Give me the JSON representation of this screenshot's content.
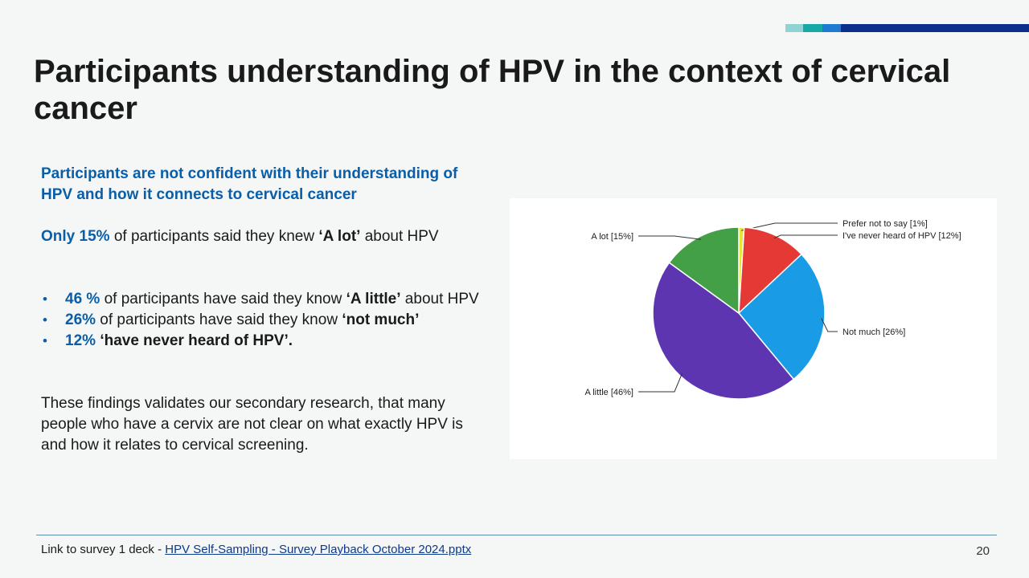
{
  "slide": {
    "title": "Participants understanding of HPV in the context of cervical cancer",
    "accent_colors": [
      "#8fd3d3",
      "#16a9a5",
      "#1f7ad1",
      "#0b2f8a"
    ]
  },
  "left": {
    "lead": "Participants are not confident with their understanding of HPV and how it connects to cervical cancer",
    "para1": {
      "highlight": "Only 15%",
      "text1": " of participants said they knew ",
      "bold": "‘A lot’",
      "text2": " about HPV"
    },
    "bullets": [
      {
        "highlight": "46 %",
        "text": " of participants have said they know ",
        "bold": "‘A little’",
        "tail": " about HPV"
      },
      {
        "highlight": "26%",
        "text": " of participants have said they know ",
        "bold": "‘not much’",
        "tail": ""
      },
      {
        "highlight": "12%",
        "text": " ",
        "bold": "‘have never heard of HPV’.",
        "tail": ""
      }
    ],
    "closing": "These findings validates our secondary research, that many people who have a cervix are not clear on what exactly HPV is and how it relates to cervical screening."
  },
  "footer": {
    "prefix": "Link to survey 1 deck - ",
    "link_text": "HPV Self-Sampling - Survey Playback October 2024.pptx",
    "page_number": "20"
  },
  "chart_data": {
    "type": "pie",
    "slices": [
      {
        "label": "Prefer not to say [1%]",
        "value": 1,
        "color": "#e6e63a"
      },
      {
        "label": "I've never heard of HPV [12%]",
        "value": 12,
        "color": "#e53935"
      },
      {
        "label": "Not much [26%]",
        "value": 26,
        "color": "#1a9be6"
      },
      {
        "label": "A little [46%]",
        "value": 46,
        "color": "#5e35b1"
      },
      {
        "label": "A lot [15%]",
        "value": 15,
        "color": "#43a047"
      }
    ]
  }
}
